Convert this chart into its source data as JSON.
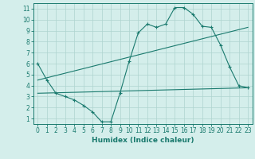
{
  "xlabel": "Humidex (Indice chaleur)",
  "xlim": [
    -0.5,
    23.5
  ],
  "ylim": [
    0.5,
    11.5
  ],
  "xticks": [
    0,
    1,
    2,
    3,
    4,
    5,
    6,
    7,
    8,
    9,
    10,
    11,
    12,
    13,
    14,
    15,
    16,
    17,
    18,
    19,
    20,
    21,
    22,
    23
  ],
  "yticks": [
    1,
    2,
    3,
    4,
    5,
    6,
    7,
    8,
    9,
    10,
    11
  ],
  "line_color": "#1a7a6e",
  "bg_color": "#d4eeeb",
  "grid_color": "#aed4cf",
  "series1_x": [
    0,
    1,
    2,
    3,
    4,
    5,
    6,
    7,
    8,
    9,
    10,
    11,
    12,
    13,
    14,
    15,
    16,
    17,
    18,
    19,
    20,
    21,
    22,
    23
  ],
  "series1_y": [
    6.0,
    4.5,
    3.3,
    3.0,
    2.7,
    2.2,
    1.6,
    0.7,
    0.7,
    3.3,
    6.2,
    8.8,
    9.6,
    9.3,
    9.6,
    11.1,
    11.1,
    10.5,
    9.4,
    9.3,
    7.7,
    5.7,
    4.0,
    3.8
  ],
  "series2_x": [
    0,
    23
  ],
  "series2_y": [
    4.5,
    9.3
  ],
  "series3_x": [
    0,
    23
  ],
  "series3_y": [
    3.3,
    3.8
  ],
  "tick_fontsize": 5.5,
  "xlabel_fontsize": 6.5
}
